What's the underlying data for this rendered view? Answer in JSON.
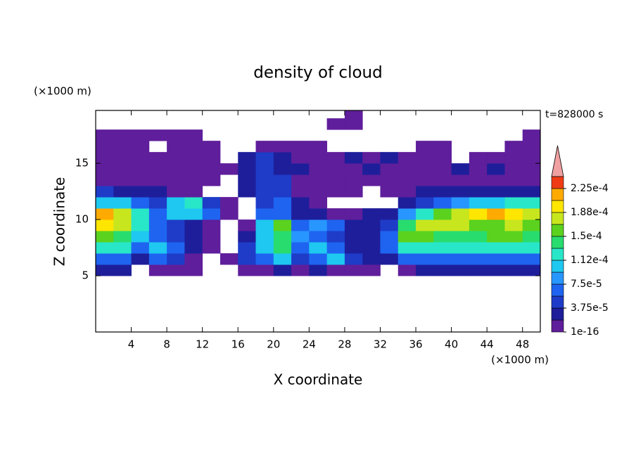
{
  "chart_data": {
    "type": "contour",
    "title": "density of cloud",
    "x_label": "X coordinate",
    "y_label": "Z coordinate",
    "x_unit": "(×1000 m)",
    "y_unit": "(×1000 m)",
    "time_label": "t=828000 s",
    "xlim": [
      0,
      50
    ],
    "ylim": [
      0,
      19.7
    ],
    "xticks": [
      4,
      8,
      12,
      16,
      20,
      24,
      28,
      32,
      36,
      40,
      44,
      48
    ],
    "yticks": [
      5,
      10,
      15
    ],
    "levels": [
      1e-16,
      1.875e-05,
      3.75e-05,
      5.625e-05,
      7.5e-05,
      9.375e-05,
      0.0001125,
      0.00013125,
      0.00015,
      0.00016875,
      0.0001875,
      0.00020625,
      0.000225,
      0.00024375
    ],
    "colors": [
      "#5f1e9b",
      "#1e1e9b",
      "#1e3cc8",
      "#1e64f0",
      "#2896ff",
      "#1ec8f0",
      "#28e6c8",
      "#28dc6e",
      "#5ad21e",
      "#c8e61e",
      "#ffe600",
      "#ffaa00",
      "#f03c14",
      "#f0a0a0"
    ],
    "colorbar_ticks": [
      {
        "value": 1e-16,
        "label": "1e-16"
      },
      {
        "value": 3.75e-05,
        "label": "3.75e-5"
      },
      {
        "value": 7.5e-05,
        "label": "7.5e-5"
      },
      {
        "value": 0.0001125,
        "label": "1.12e-4"
      },
      {
        "value": 0.00015,
        "label": "1.5e-4"
      },
      {
        "value": 0.0001875,
        "label": "1.88e-4"
      },
      {
        "value": 0.000225,
        "label": "2.25e-4"
      }
    ],
    "x": [
      1,
      3,
      5,
      7,
      9,
      11,
      13,
      15,
      17,
      19,
      21,
      23,
      25,
      27,
      29,
      31,
      33,
      35,
      37,
      39,
      41,
      43,
      45,
      47,
      49
    ],
    "z": [
      0.5,
      1.5,
      2.5,
      3.5,
      4.5,
      5.5,
      6.5,
      7.5,
      8.5,
      9.5,
      10.5,
      11.5,
      12.5,
      13.5,
      14.5,
      15.5,
      16.5,
      17.5,
      18.5,
      19.5
    ],
    "values": [
      [
        null,
        null,
        null,
        null,
        null,
        null,
        null,
        null,
        null,
        null,
        null,
        null,
        null,
        null,
        null,
        null,
        null,
        null,
        null,
        null,
        null,
        null,
        null,
        null,
        null
      ],
      [
        null,
        null,
        null,
        null,
        null,
        null,
        null,
        null,
        null,
        null,
        null,
        null,
        null,
        null,
        null,
        null,
        null,
        null,
        null,
        null,
        null,
        null,
        null,
        null,
        null
      ],
      [
        null,
        null,
        null,
        null,
        null,
        null,
        null,
        null,
        null,
        null,
        null,
        null,
        null,
        null,
        null,
        null,
        null,
        null,
        null,
        null,
        null,
        null,
        null,
        null,
        null
      ],
      [
        null,
        null,
        null,
        null,
        null,
        null,
        null,
        null,
        null,
        null,
        null,
        null,
        null,
        null,
        null,
        null,
        null,
        null,
        null,
        null,
        null,
        null,
        null,
        null,
        null
      ],
      [
        null,
        null,
        null,
        null,
        null,
        null,
        null,
        null,
        null,
        null,
        null,
        null,
        null,
        null,
        null,
        null,
        null,
        null,
        null,
        null,
        null,
        null,
        null,
        null,
        null
      ],
      [
        2.8e-05,
        2.8e-05,
        null,
        9e-06,
        9e-06,
        9e-06,
        null,
        null,
        9e-06,
        9e-06,
        2.8e-05,
        9e-06,
        2.8e-05,
        9e-06,
        9e-06,
        9e-06,
        null,
        9e-06,
        2.8e-05,
        2.8e-05,
        2.8e-05,
        2.8e-05,
        2.8e-05,
        2.8e-05,
        2.8e-05
      ],
      [
        6.6e-05,
        6.6e-05,
        2.8e-05,
        6.6e-05,
        4.7e-05,
        9e-06,
        null,
        9e-06,
        4.7e-05,
        6.6e-05,
        0.000103,
        4.7e-05,
        6.6e-05,
        0.000103,
        4.7e-05,
        2.8e-05,
        2.8e-05,
        6.6e-05,
        6.6e-05,
        6.6e-05,
        6.6e-05,
        6.6e-05,
        6.6e-05,
        6.6e-05,
        6.6e-05
      ],
      [
        0.000122,
        0.000122,
        6.6e-05,
        0.000103,
        6.6e-05,
        2.8e-05,
        9e-06,
        null,
        4.7e-05,
        0.000103,
        0.00014,
        6.6e-05,
        0.000103,
        6.6e-05,
        2.8e-05,
        2.8e-05,
        6.6e-05,
        0.000122,
        0.000122,
        0.000122,
        0.000122,
        0.000122,
        0.000122,
        0.000122,
        0.000122
      ],
      [
        0.000159,
        0.00014,
        0.000103,
        6.6e-05,
        4.7e-05,
        2.8e-05,
        9e-06,
        null,
        2.8e-05,
        0.000103,
        0.00014,
        8.4e-05,
        6.6e-05,
        4.7e-05,
        2.8e-05,
        2.8e-05,
        6.6e-05,
        0.000159,
        0.000159,
        0.00014,
        0.00014,
        0.00014,
        0.000159,
        0.000159,
        0.00014
      ],
      [
        0.000197,
        0.000178,
        0.000122,
        6.6e-05,
        4.7e-05,
        2.8e-05,
        9e-06,
        null,
        9e-06,
        0.000103,
        0.000159,
        6.6e-05,
        8.4e-05,
        6.6e-05,
        2.8e-05,
        2.8e-05,
        4.7e-05,
        0.00014,
        0.000178,
        0.000178,
        0.000178,
        0.000159,
        0.000159,
        0.000178,
        0.000159
      ],
      [
        0.000216,
        0.000178,
        0.000122,
        6.6e-05,
        0.000103,
        0.000103,
        6.6e-05,
        9e-06,
        null,
        6.6e-05,
        6.6e-05,
        2.8e-05,
        2.8e-05,
        9e-06,
        9e-06,
        2.8e-05,
        2.8e-05,
        8.4e-05,
        0.000122,
        0.000159,
        0.000178,
        0.000197,
        0.000216,
        0.000197,
        0.000178
      ],
      [
        0.000103,
        0.000103,
        6.6e-05,
        4.7e-05,
        0.000103,
        0.000122,
        4.7e-05,
        9e-06,
        null,
        4.7e-05,
        6.6e-05,
        2.8e-05,
        9e-06,
        null,
        null,
        null,
        null,
        2.8e-05,
        4.7e-05,
        6.6e-05,
        8.4e-05,
        0.000103,
        0.000103,
        0.000122,
        0.000122
      ],
      [
        4.7e-05,
        2.8e-05,
        2.8e-05,
        2.8e-05,
        9e-06,
        9e-06,
        null,
        null,
        2.8e-05,
        4.7e-05,
        4.7e-05,
        9e-06,
        9e-06,
        9e-06,
        9e-06,
        null,
        9e-06,
        9e-06,
        2.8e-05,
        2.8e-05,
        2.8e-05,
        2.8e-05,
        2.8e-05,
        2.8e-05,
        2.8e-05
      ],
      [
        9e-06,
        9e-06,
        9e-06,
        9e-06,
        9e-06,
        9e-06,
        9e-06,
        null,
        2.8e-05,
        4.7e-05,
        4.7e-05,
        9e-06,
        9e-06,
        9e-06,
        9e-06,
        9e-06,
        9e-06,
        9e-06,
        9e-06,
        9e-06,
        9e-06,
        9e-06,
        9e-06,
        9e-06,
        9e-06
      ],
      [
        9e-06,
        9e-06,
        9e-06,
        9e-06,
        9e-06,
        9e-06,
        9e-06,
        9e-06,
        2.8e-05,
        4.7e-05,
        2.8e-05,
        2.8e-05,
        9e-06,
        9e-06,
        9e-06,
        2.8e-05,
        9e-06,
        9e-06,
        9e-06,
        9e-06,
        2.8e-05,
        9e-06,
        2.8e-05,
        9e-06,
        9e-06
      ],
      [
        9e-06,
        9e-06,
        9e-06,
        9e-06,
        9e-06,
        9e-06,
        9e-06,
        null,
        2.8e-05,
        4.7e-05,
        2.8e-05,
        9e-06,
        9e-06,
        9e-06,
        2.8e-05,
        9e-06,
        2.8e-05,
        9e-06,
        9e-06,
        9e-06,
        null,
        9e-06,
        9e-06,
        9e-06,
        9e-06
      ],
      [
        9e-06,
        9e-06,
        9e-06,
        null,
        9e-06,
        9e-06,
        9e-06,
        null,
        null,
        9e-06,
        9e-06,
        9e-06,
        9e-06,
        null,
        null,
        null,
        null,
        null,
        9e-06,
        9e-06,
        null,
        null,
        null,
        9e-06,
        9e-06
      ],
      [
        9e-06,
        9e-06,
        9e-06,
        9e-06,
        9e-06,
        9e-06,
        null,
        null,
        null,
        null,
        null,
        null,
        null,
        null,
        null,
        null,
        null,
        null,
        null,
        null,
        null,
        null,
        null,
        null,
        9e-06
      ],
      [
        null,
        null,
        null,
        null,
        null,
        null,
        null,
        null,
        null,
        null,
        null,
        null,
        null,
        9e-06,
        9e-06,
        null,
        null,
        null,
        null,
        null,
        null,
        null,
        null,
        null,
        null
      ],
      [
        null,
        null,
        null,
        null,
        null,
        null,
        null,
        null,
        null,
        null,
        null,
        null,
        null,
        null,
        9e-06,
        null,
        null,
        null,
        null,
        null,
        null,
        null,
        null,
        null,
        null
      ]
    ]
  }
}
